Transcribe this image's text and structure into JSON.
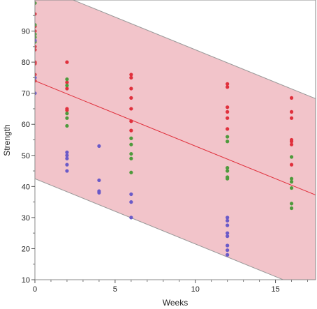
{
  "chart_data": {
    "type": "scatter",
    "title": "",
    "xlabel": "Weeks",
    "ylabel": "Strength",
    "xlim": [
      0,
      17.5
    ],
    "ylim": [
      10,
      100
    ],
    "x_ticks": [
      0,
      5,
      10,
      15
    ],
    "y_ticks": [
      10,
      20,
      30,
      40,
      50,
      60,
      70,
      80,
      90
    ],
    "grid": false,
    "legend": "none",
    "fit_line": {
      "intercept": 74,
      "slope": -2.1,
      "color": "#e0303c"
    },
    "prediction_band": {
      "upper_intercept": 105,
      "lower_intercept": 42.5,
      "slope": -2.1,
      "fill": "#f2c4ca",
      "edge": "#999999"
    },
    "series": [
      {
        "color": "#e0303c",
        "points": [
          [
            0,
            95.5
          ],
          [
            0,
            91.5
          ],
          [
            0,
            90
          ],
          [
            0,
            85
          ],
          [
            0,
            84
          ],
          [
            0,
            80
          ],
          [
            0,
            79.5
          ],
          [
            0,
            76
          ],
          [
            0,
            74
          ],
          [
            2,
            80
          ],
          [
            2,
            73.5
          ],
          [
            2,
            71.5
          ],
          [
            2,
            65
          ],
          [
            2,
            64.5
          ],
          [
            6,
            76
          ],
          [
            6,
            75
          ],
          [
            6,
            71.5
          ],
          [
            6,
            68.5
          ],
          [
            6,
            65
          ],
          [
            6,
            61
          ],
          [
            6,
            58
          ],
          [
            12,
            73
          ],
          [
            12,
            72
          ],
          [
            12,
            65.5
          ],
          [
            12,
            64
          ],
          [
            12,
            62
          ],
          [
            12,
            58.5
          ],
          [
            16,
            68.5
          ],
          [
            16,
            64
          ],
          [
            16,
            62
          ],
          [
            16,
            55
          ],
          [
            16,
            54.5
          ],
          [
            16,
            53.5
          ],
          [
            16,
            47
          ]
        ]
      },
      {
        "color": "#4e9a3c",
        "points": [
          [
            0,
            99
          ],
          [
            0,
            92
          ],
          [
            0,
            89
          ],
          [
            0,
            88
          ],
          [
            0,
            86.5
          ],
          [
            2,
            74.5
          ],
          [
            2,
            72.5
          ],
          [
            2,
            63.5
          ],
          [
            2,
            62
          ],
          [
            2,
            59.5
          ],
          [
            6,
            55.5
          ],
          [
            6,
            53.5
          ],
          [
            6,
            50.5
          ],
          [
            6,
            49
          ],
          [
            6,
            44.5
          ],
          [
            12,
            56
          ],
          [
            12,
            54.5
          ],
          [
            12,
            46
          ],
          [
            12,
            45
          ],
          [
            12,
            43
          ],
          [
            12,
            42.5
          ],
          [
            16,
            49.5
          ],
          [
            16,
            42.5
          ],
          [
            16,
            41.5
          ],
          [
            16,
            39.5
          ],
          [
            16,
            34.5
          ],
          [
            16,
            33
          ]
        ]
      },
      {
        "color": "#6a5ac8",
        "points": [
          [
            0,
            87
          ],
          [
            0,
            75
          ],
          [
            0,
            70
          ],
          [
            2,
            51
          ],
          [
            2,
            50
          ],
          [
            2,
            49
          ],
          [
            2,
            47
          ],
          [
            2,
            45
          ],
          [
            4,
            53
          ],
          [
            4,
            42
          ],
          [
            4,
            38.5
          ],
          [
            4,
            38
          ],
          [
            6,
            37.5
          ],
          [
            6,
            35
          ],
          [
            6,
            30
          ],
          [
            12,
            30
          ],
          [
            12,
            29
          ],
          [
            12,
            27.5
          ],
          [
            12,
            25
          ],
          [
            12,
            24
          ],
          [
            12,
            21
          ],
          [
            12,
            19.5
          ],
          [
            12,
            18
          ]
        ]
      }
    ]
  }
}
